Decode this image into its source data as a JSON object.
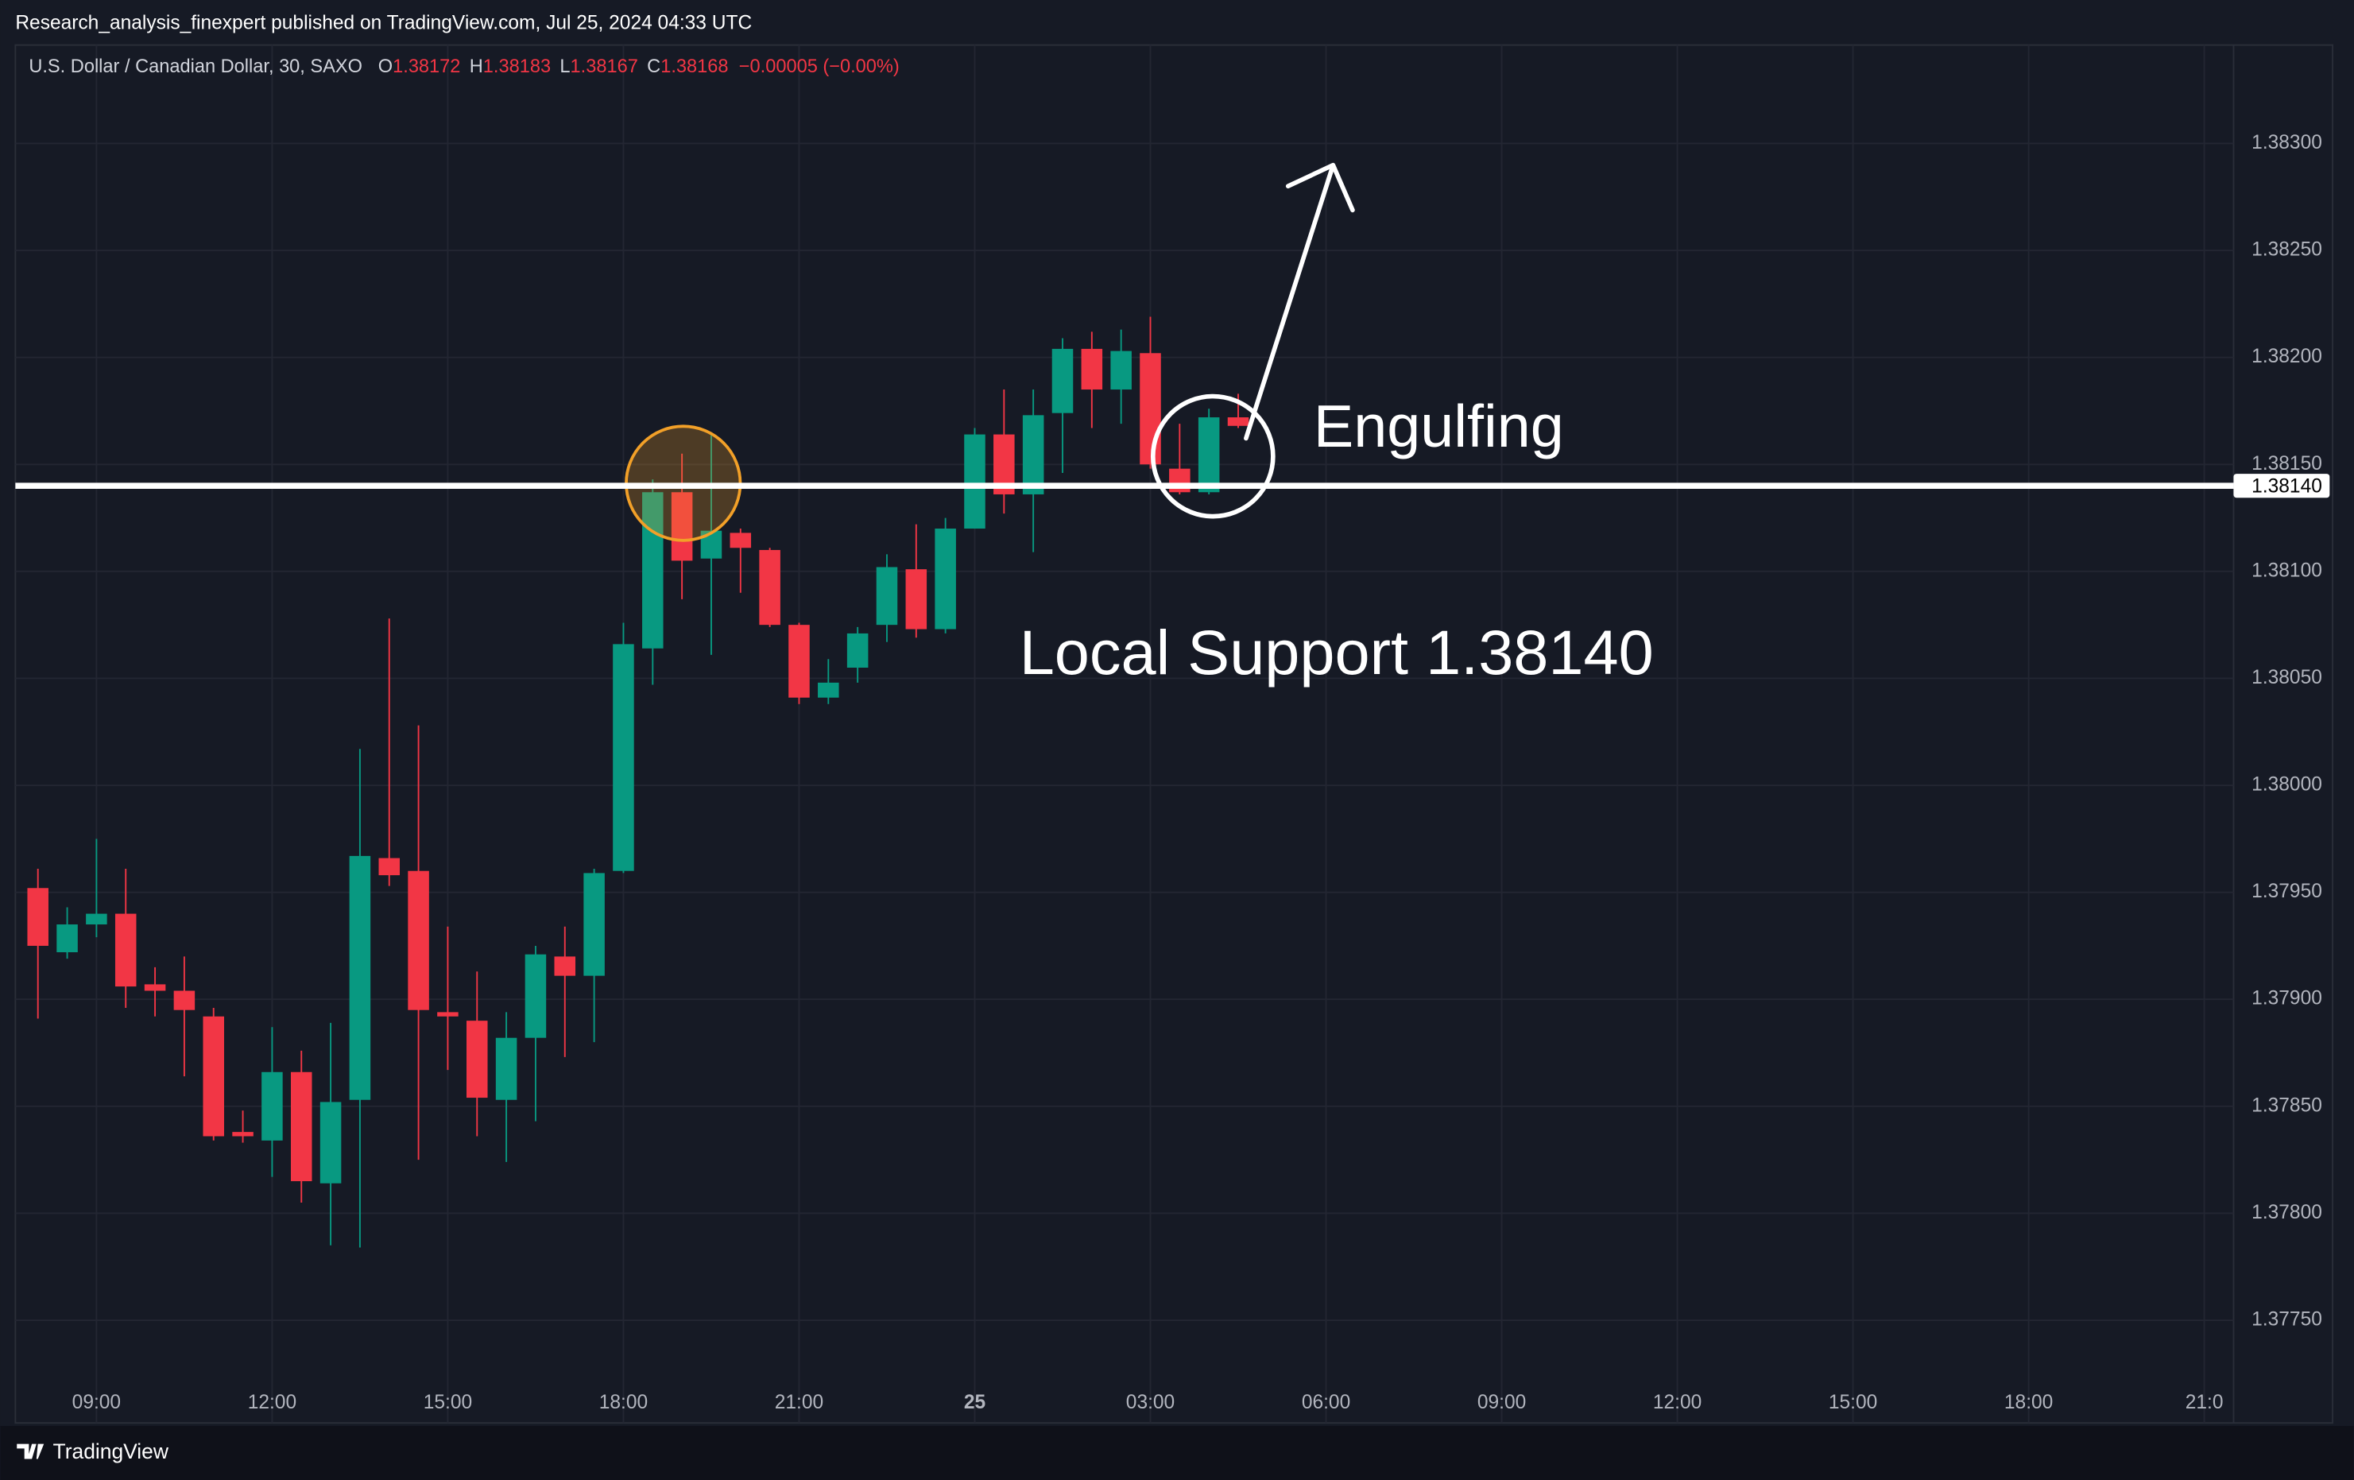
{
  "header": {
    "publisher": "Research_analysis_finexpert published on TradingView.com, Jul 25, 2024 04:33 UTC"
  },
  "footer": {
    "brand": "TradingView"
  },
  "chart_data": {
    "type": "candlestick",
    "title": "U.S. Dollar / Canadian Dollar, 30, SAXO",
    "legend_values": [
      {
        "label": "O",
        "value": "1.38172"
      },
      {
        "label": "H",
        "value": "1.38183"
      },
      {
        "label": "L",
        "value": "1.38167"
      },
      {
        "label": "C",
        "value": "1.38168"
      }
    ],
    "change": "−0.00005 (−0.00%)",
    "open": [
      1.37952,
      1.37922,
      1.37935,
      1.3794,
      1.37907,
      1.37904,
      1.37892,
      1.37838,
      1.37834,
      1.37866,
      1.37814,
      1.37853,
      1.37966,
      1.3796,
      1.37894,
      1.3789,
      1.37853,
      1.37882,
      1.3792,
      1.37911,
      1.3796,
      1.38064,
      1.38137,
      1.38106,
      1.38118,
      1.3811,
      1.38075,
      1.38041,
      1.38055,
      1.38075,
      1.38101,
      1.38073,
      1.3812,
      1.38164,
      1.38136,
      1.38174,
      1.38204,
      1.38185,
      1.38202,
      1.38148,
      1.38137,
      1.38172
    ],
    "high": [
      1.37961,
      1.37943,
      1.37975,
      1.37961,
      1.37915,
      1.3792,
      1.37896,
      1.37848,
      1.37887,
      1.37876,
      1.37889,
      1.38017,
      1.38078,
      1.38028,
      1.37934,
      1.37913,
      1.37894,
      1.37925,
      1.37934,
      1.37961,
      1.38076,
      1.38143,
      1.38155,
      1.38164,
      1.3812,
      1.38111,
      1.38076,
      1.38059,
      1.38074,
      1.38108,
      1.38122,
      1.38125,
      1.38167,
      1.38185,
      1.38185,
      1.38209,
      1.38212,
      1.38213,
      1.38219,
      1.38169,
      1.38176,
      1.38183
    ],
    "low": [
      1.37891,
      1.37919,
      1.37929,
      1.37896,
      1.37892,
      1.37864,
      1.37834,
      1.37833,
      1.37817,
      1.37805,
      1.37785,
      1.37784,
      1.37953,
      1.37825,
      1.37867,
      1.37836,
      1.37824,
      1.37843,
      1.37873,
      1.3788,
      1.37959,
      1.38047,
      1.38087,
      1.38061,
      1.3809,
      1.38074,
      1.38038,
      1.38038,
      1.38048,
      1.38067,
      1.38069,
      1.38071,
      1.3812,
      1.38127,
      1.38109,
      1.38146,
      1.38167,
      1.38169,
      1.38148,
      1.38136,
      1.38136,
      1.38167
    ],
    "close": [
      1.37925,
      1.37935,
      1.3794,
      1.37906,
      1.37904,
      1.37895,
      1.37836,
      1.37836,
      1.37866,
      1.37815,
      1.37852,
      1.37967,
      1.37958,
      1.37895,
      1.37892,
      1.37854,
      1.37882,
      1.37921,
      1.37911,
      1.37959,
      1.38066,
      1.38137,
      1.38105,
      1.38119,
      1.38111,
      1.38075,
      1.38041,
      1.38048,
      1.38071,
      1.38102,
      1.38073,
      1.3812,
      1.38164,
      1.38136,
      1.38173,
      1.38204,
      1.38185,
      1.38203,
      1.3815,
      1.38137,
      1.38172,
      1.38168
    ],
    "up_color": "#089981",
    "down_color": "#f23645",
    "ylim": [
      1.37702,
      1.38346
    ],
    "yticks": [
      {
        "value": 1.3775,
        "label": "1.37750"
      },
      {
        "value": 1.378,
        "label": "1.37800"
      },
      {
        "value": 1.3785,
        "label": "1.37850"
      },
      {
        "value": 1.379,
        "label": "1.37900"
      },
      {
        "value": 1.3795,
        "label": "1.37950"
      },
      {
        "value": 1.38,
        "label": "1.38000"
      },
      {
        "value": 1.3805,
        "label": "1.38050"
      },
      {
        "value": 1.381,
        "label": "1.38100"
      },
      {
        "value": 1.3815,
        "label": "1.38150"
      },
      {
        "value": 1.382,
        "label": "1.38200"
      },
      {
        "value": 1.3825,
        "label": "1.38250"
      },
      {
        "value": 1.383,
        "label": "1.38300"
      }
    ],
    "xlim": [
      -0.77,
      75
    ],
    "xticks": [
      {
        "value": 2,
        "label": "09:00"
      },
      {
        "value": 8,
        "label": "12:00"
      },
      {
        "value": 14,
        "label": "15:00"
      },
      {
        "value": 20,
        "label": "18:00"
      },
      {
        "value": 26,
        "label": "21:00"
      },
      {
        "value": 32,
        "label": "25"
      },
      {
        "value": 38,
        "label": "03:00"
      },
      {
        "value": 44,
        "label": "06:00"
      },
      {
        "value": 50,
        "label": "09:00"
      },
      {
        "value": 56,
        "label": "12:00"
      },
      {
        "value": 62,
        "label": "15:00"
      },
      {
        "value": 68,
        "label": "18:00"
      },
      {
        "value": 74,
        "label": "21:0"
      }
    ],
    "grid": true,
    "support": {
      "value": 1.3814,
      "label": "1.38140",
      "color": "#ffffff"
    },
    "annotations": [
      "Engulfing",
      "Local Support 1.38140"
    ]
  }
}
